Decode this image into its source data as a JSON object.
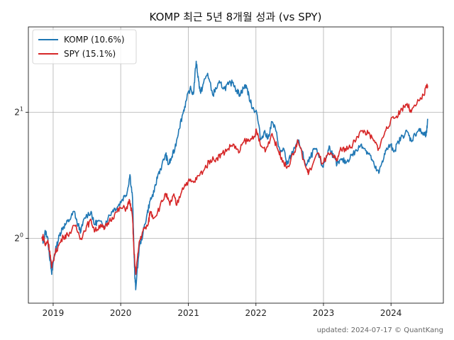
{
  "chart_data": {
    "type": "line",
    "title": "KOMP 최근 5년 8개월 성과 (vs SPY)",
    "xlabel": "",
    "ylabel": "",
    "y_scale": "log2",
    "ylim": [
      0.7,
      3.2
    ],
    "xlim": [
      "2018-08-20",
      "2024-10-10"
    ],
    "x_ticks": [
      "2019",
      "2020",
      "2021",
      "2022",
      "2023",
      "2024"
    ],
    "y_ticks": [
      {
        "value": 1,
        "base": "2",
        "exp": "0"
      },
      {
        "value": 2,
        "base": "2",
        "exp": "1"
      }
    ],
    "grid": true,
    "legend_position": "top-left",
    "series": [
      {
        "name": "KOMP (10.6%)",
        "color": "#1f77b4",
        "points": [
          [
            "2018-11-01",
            1.0
          ],
          [
            "2018-11-10",
            0.98
          ],
          [
            "2018-11-20",
            1.04
          ],
          [
            "2018-12-01",
            1.01
          ],
          [
            "2018-12-10",
            0.93
          ],
          [
            "2018-12-24",
            0.82
          ],
          [
            "2019-01-05",
            0.9
          ],
          [
            "2019-01-20",
            0.96
          ],
          [
            "2019-02-05",
            1.02
          ],
          [
            "2019-02-20",
            1.06
          ],
          [
            "2019-03-10",
            1.08
          ],
          [
            "2019-04-01",
            1.11
          ],
          [
            "2019-04-25",
            1.16
          ],
          [
            "2019-05-10",
            1.09
          ],
          [
            "2019-05-31",
            1.04
          ],
          [
            "2019-06-20",
            1.12
          ],
          [
            "2019-07-25",
            1.16
          ],
          [
            "2019-08-10",
            1.08
          ],
          [
            "2019-09-01",
            1.1
          ],
          [
            "2019-10-01",
            1.07
          ],
          [
            "2019-10-25",
            1.12
          ],
          [
            "2019-11-20",
            1.17
          ],
          [
            "2019-12-15",
            1.19
          ],
          [
            "2020-01-10",
            1.24
          ],
          [
            "2020-02-05",
            1.29
          ],
          [
            "2020-02-20",
            1.42
          ],
          [
            "2020-03-05",
            1.25
          ],
          [
            "2020-03-12",
            0.96
          ],
          [
            "2020-03-18",
            0.8
          ],
          [
            "2020-03-23",
            0.76
          ],
          [
            "2020-04-10",
            0.95
          ],
          [
            "2020-05-01",
            1.03
          ],
          [
            "2020-05-20",
            1.13
          ],
          [
            "2020-06-08",
            1.23
          ],
          [
            "2020-06-30",
            1.29
          ],
          [
            "2020-07-20",
            1.42
          ],
          [
            "2020-08-10",
            1.49
          ],
          [
            "2020-08-31",
            1.59
          ],
          [
            "2020-09-15",
            1.5
          ],
          [
            "2020-10-01",
            1.55
          ],
          [
            "2020-10-20",
            1.64
          ],
          [
            "2020-11-10",
            1.82
          ],
          [
            "2020-12-01",
            1.98
          ],
          [
            "2020-12-20",
            2.13
          ],
          [
            "2021-01-10",
            2.28
          ],
          [
            "2021-01-28",
            2.21
          ],
          [
            "2021-02-12",
            2.65
          ],
          [
            "2021-02-25",
            2.38
          ],
          [
            "2021-03-08",
            2.22
          ],
          [
            "2021-03-25",
            2.36
          ],
          [
            "2021-04-15",
            2.48
          ],
          [
            "2021-05-12",
            2.2
          ],
          [
            "2021-05-30",
            2.28
          ],
          [
            "2021-06-20",
            2.35
          ],
          [
            "2021-07-15",
            2.28
          ],
          [
            "2021-08-05",
            2.33
          ],
          [
            "2021-08-31",
            2.36
          ],
          [
            "2021-09-20",
            2.25
          ],
          [
            "2021-10-05",
            2.21
          ],
          [
            "2021-10-25",
            2.28
          ],
          [
            "2021-11-10",
            2.32
          ],
          [
            "2021-11-30",
            2.13
          ],
          [
            "2021-12-15",
            2.05
          ],
          [
            "2022-01-05",
            2.0
          ],
          [
            "2022-01-27",
            1.72
          ],
          [
            "2022-02-15",
            1.8
          ],
          [
            "2022-03-07",
            1.73
          ],
          [
            "2022-03-29",
            1.9
          ],
          [
            "2022-04-20",
            1.8
          ],
          [
            "2022-05-12",
            1.6
          ],
          [
            "2022-05-31",
            1.64
          ],
          [
            "2022-06-16",
            1.5
          ],
          [
            "2022-07-10",
            1.58
          ],
          [
            "2022-08-15",
            1.72
          ],
          [
            "2022-09-05",
            1.62
          ],
          [
            "2022-09-30",
            1.49
          ],
          [
            "2022-10-20",
            1.55
          ],
          [
            "2022-11-15",
            1.64
          ],
          [
            "2022-12-05",
            1.58
          ],
          [
            "2022-12-28",
            1.48
          ],
          [
            "2023-01-20",
            1.58
          ],
          [
            "2023-02-03",
            1.66
          ],
          [
            "2023-02-25",
            1.56
          ],
          [
            "2023-03-15",
            1.5
          ],
          [
            "2023-04-10",
            1.54
          ],
          [
            "2023-05-05",
            1.52
          ],
          [
            "2023-06-01",
            1.58
          ],
          [
            "2023-06-30",
            1.62
          ],
          [
            "2023-07-25",
            1.68
          ],
          [
            "2023-08-20",
            1.62
          ],
          [
            "2023-09-10",
            1.58
          ],
          [
            "2023-10-05",
            1.48
          ],
          [
            "2023-10-27",
            1.43
          ],
          [
            "2023-11-15",
            1.53
          ],
          [
            "2023-12-05",
            1.62
          ],
          [
            "2023-12-28",
            1.67
          ],
          [
            "2024-01-20",
            1.62
          ],
          [
            "2024-02-10",
            1.7
          ],
          [
            "2024-03-05",
            1.76
          ],
          [
            "2024-03-28",
            1.8
          ],
          [
            "2024-04-19",
            1.71
          ],
          [
            "2024-05-10",
            1.77
          ],
          [
            "2024-05-30",
            1.82
          ],
          [
            "2024-06-20",
            1.78
          ],
          [
            "2024-07-05",
            1.76
          ],
          [
            "2024-07-12",
            1.79
          ],
          [
            "2024-07-17",
            1.93
          ]
        ]
      },
      {
        "name": "SPY (15.1%)",
        "color": "#d62728",
        "points": [
          [
            "2018-11-01",
            1.0
          ],
          [
            "2018-11-10",
            1.01
          ],
          [
            "2018-11-20",
            0.96
          ],
          [
            "2018-12-03",
            0.99
          ],
          [
            "2018-12-14",
            0.93
          ],
          [
            "2018-12-24",
            0.85
          ],
          [
            "2019-01-10",
            0.92
          ],
          [
            "2019-01-30",
            0.96
          ],
          [
            "2019-02-25",
            1.01
          ],
          [
            "2019-03-20",
            1.02
          ],
          [
            "2019-04-30",
            1.07
          ],
          [
            "2019-05-31",
            1.0
          ],
          [
            "2019-06-30",
            1.07
          ],
          [
            "2019-07-26",
            1.1
          ],
          [
            "2019-08-15",
            1.04
          ],
          [
            "2019-09-15",
            1.08
          ],
          [
            "2019-10-03",
            1.05
          ],
          [
            "2019-10-31",
            1.1
          ],
          [
            "2019-11-29",
            1.14
          ],
          [
            "2019-12-31",
            1.18
          ],
          [
            "2020-01-31",
            1.18
          ],
          [
            "2020-02-19",
            1.23
          ],
          [
            "2020-03-05",
            1.12
          ],
          [
            "2020-03-12",
            0.94
          ],
          [
            "2020-03-23",
            0.82
          ],
          [
            "2020-04-10",
            0.98
          ],
          [
            "2020-04-30",
            1.04
          ],
          [
            "2020-05-29",
            1.08
          ],
          [
            "2020-06-08",
            1.16
          ],
          [
            "2020-06-30",
            1.12
          ],
          [
            "2020-07-31",
            1.19
          ],
          [
            "2020-08-31",
            1.28
          ],
          [
            "2020-09-23",
            1.2
          ],
          [
            "2020-10-12",
            1.27
          ],
          [
            "2020-10-30",
            1.2
          ],
          [
            "2020-11-30",
            1.32
          ],
          [
            "2020-12-31",
            1.37
          ],
          [
            "2021-01-29",
            1.36
          ],
          [
            "2021-02-26",
            1.41
          ],
          [
            "2021-03-31",
            1.47
          ],
          [
            "2021-04-30",
            1.54
          ],
          [
            "2021-05-31",
            1.55
          ],
          [
            "2021-06-30",
            1.59
          ],
          [
            "2021-07-30",
            1.63
          ],
          [
            "2021-08-31",
            1.68
          ],
          [
            "2021-09-30",
            1.6
          ],
          [
            "2021-10-29",
            1.71
          ],
          [
            "2021-11-30",
            1.71
          ],
          [
            "2021-12-31",
            1.79
          ],
          [
            "2022-01-04",
            1.81
          ],
          [
            "2022-01-27",
            1.66
          ],
          [
            "2022-02-24",
            1.63
          ],
          [
            "2022-03-29",
            1.78
          ],
          [
            "2022-04-29",
            1.63
          ],
          [
            "2022-05-20",
            1.56
          ],
          [
            "2022-06-16",
            1.47
          ],
          [
            "2022-07-29",
            1.61
          ],
          [
            "2022-08-16",
            1.71
          ],
          [
            "2022-09-30",
            1.47
          ],
          [
            "2022-10-13",
            1.43
          ],
          [
            "2022-11-30",
            1.6
          ],
          [
            "2022-12-28",
            1.51
          ],
          [
            "2023-01-31",
            1.59
          ],
          [
            "2023-02-28",
            1.56
          ],
          [
            "2023-03-13",
            1.53
          ],
          [
            "2023-03-31",
            1.62
          ],
          [
            "2023-04-28",
            1.64
          ],
          [
            "2023-05-31",
            1.65
          ],
          [
            "2023-06-30",
            1.75
          ],
          [
            "2023-07-31",
            1.81
          ],
          [
            "2023-08-31",
            1.78
          ],
          [
            "2023-09-29",
            1.71
          ],
          [
            "2023-10-27",
            1.64
          ],
          [
            "2023-11-30",
            1.8
          ],
          [
            "2023-12-29",
            1.9
          ],
          [
            "2024-01-31",
            1.96
          ],
          [
            "2024-02-29",
            2.04
          ],
          [
            "2024-03-28",
            2.1
          ],
          [
            "2024-04-19",
            2.0
          ],
          [
            "2024-05-31",
            2.13
          ],
          [
            "2024-06-28",
            2.2
          ],
          [
            "2024-07-10",
            2.3
          ],
          [
            "2024-07-17",
            2.32
          ]
        ]
      }
    ]
  },
  "footer": "updated: 2024-07-17 © QuantKang"
}
